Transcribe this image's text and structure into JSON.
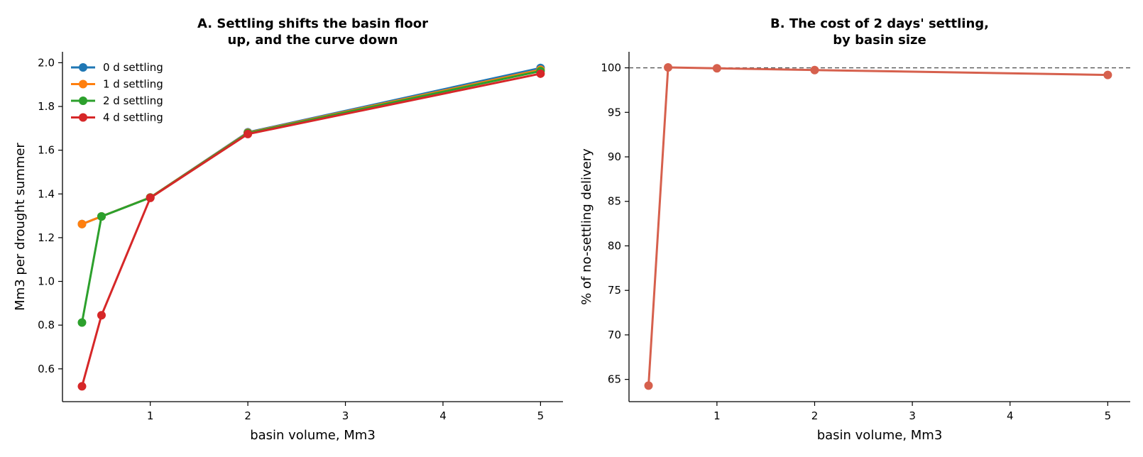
{
  "chart_data": [
    {
      "type": "line",
      "title_lines": [
        "A. Settling shifts the basin floor",
        "up, and the curve down"
      ],
      "xlabel": "basin volume, Mm3",
      "ylabel": "Mm3 per drought summer",
      "xlim": [
        0.1,
        5.23
      ],
      "ylim": [
        0.45,
        2.05
      ],
      "xticks": [
        1,
        2,
        3,
        4,
        5
      ],
      "yticks": [
        0.6,
        0.8,
        1.0,
        1.2,
        1.4,
        1.6,
        1.8,
        2.0
      ],
      "ytick_labels": [
        "0.6",
        "0.8",
        "1.0",
        "1.2",
        "1.4",
        "1.6",
        "1.8",
        "2.0"
      ],
      "legend_position": "top-left",
      "grid": false,
      "series": [
        {
          "name": "0 d settling",
          "color": "#1f77b4",
          "x": [
            0.3,
            0.5,
            1,
            2,
            5
          ],
          "y": [
            1.262,
            1.297,
            1.384,
            1.682,
            1.976
          ]
        },
        {
          "name": "1 d settling",
          "color": "#ff7f0e",
          "x": [
            0.3,
            0.5,
            1,
            2,
            5
          ],
          "y": [
            1.262,
            1.297,
            1.384,
            1.68,
            1.968
          ]
        },
        {
          "name": "2 d settling",
          "color": "#2ca02c",
          "x": [
            0.3,
            0.5,
            1,
            2,
            5
          ],
          "y": [
            0.812,
            1.297,
            1.383,
            1.678,
            1.962
          ]
        },
        {
          "name": "4 d settling",
          "color": "#d62728",
          "x": [
            0.3,
            0.5,
            1,
            2,
            5
          ],
          "y": [
            0.52,
            0.845,
            1.382,
            1.674,
            1.95
          ]
        }
      ]
    },
    {
      "type": "line",
      "title_lines": [
        "B. The cost of 2 days' settling,",
        "by basin size"
      ],
      "xlabel": "basin volume, Mm3",
      "ylabel": "% of no-settling delivery",
      "xlim": [
        0.1,
        5.23
      ],
      "ylim": [
        62.5,
        101.8
      ],
      "xticks": [
        1,
        2,
        3,
        4,
        5
      ],
      "yticks": [
        65,
        70,
        75,
        80,
        85,
        90,
        95,
        100
      ],
      "ytick_labels": [
        "65",
        "70",
        "75",
        "80",
        "85",
        "90",
        "95",
        "100"
      ],
      "reference_line": {
        "y": 100,
        "color": "#555555",
        "style": "dashed"
      },
      "grid": false,
      "series": [
        {
          "name": "",
          "color": "#d6604d",
          "x": [
            0.3,
            0.5,
            1,
            2,
            5
          ],
          "y": [
            64.3,
            100.05,
            99.95,
            99.75,
            99.2
          ]
        }
      ]
    }
  ]
}
